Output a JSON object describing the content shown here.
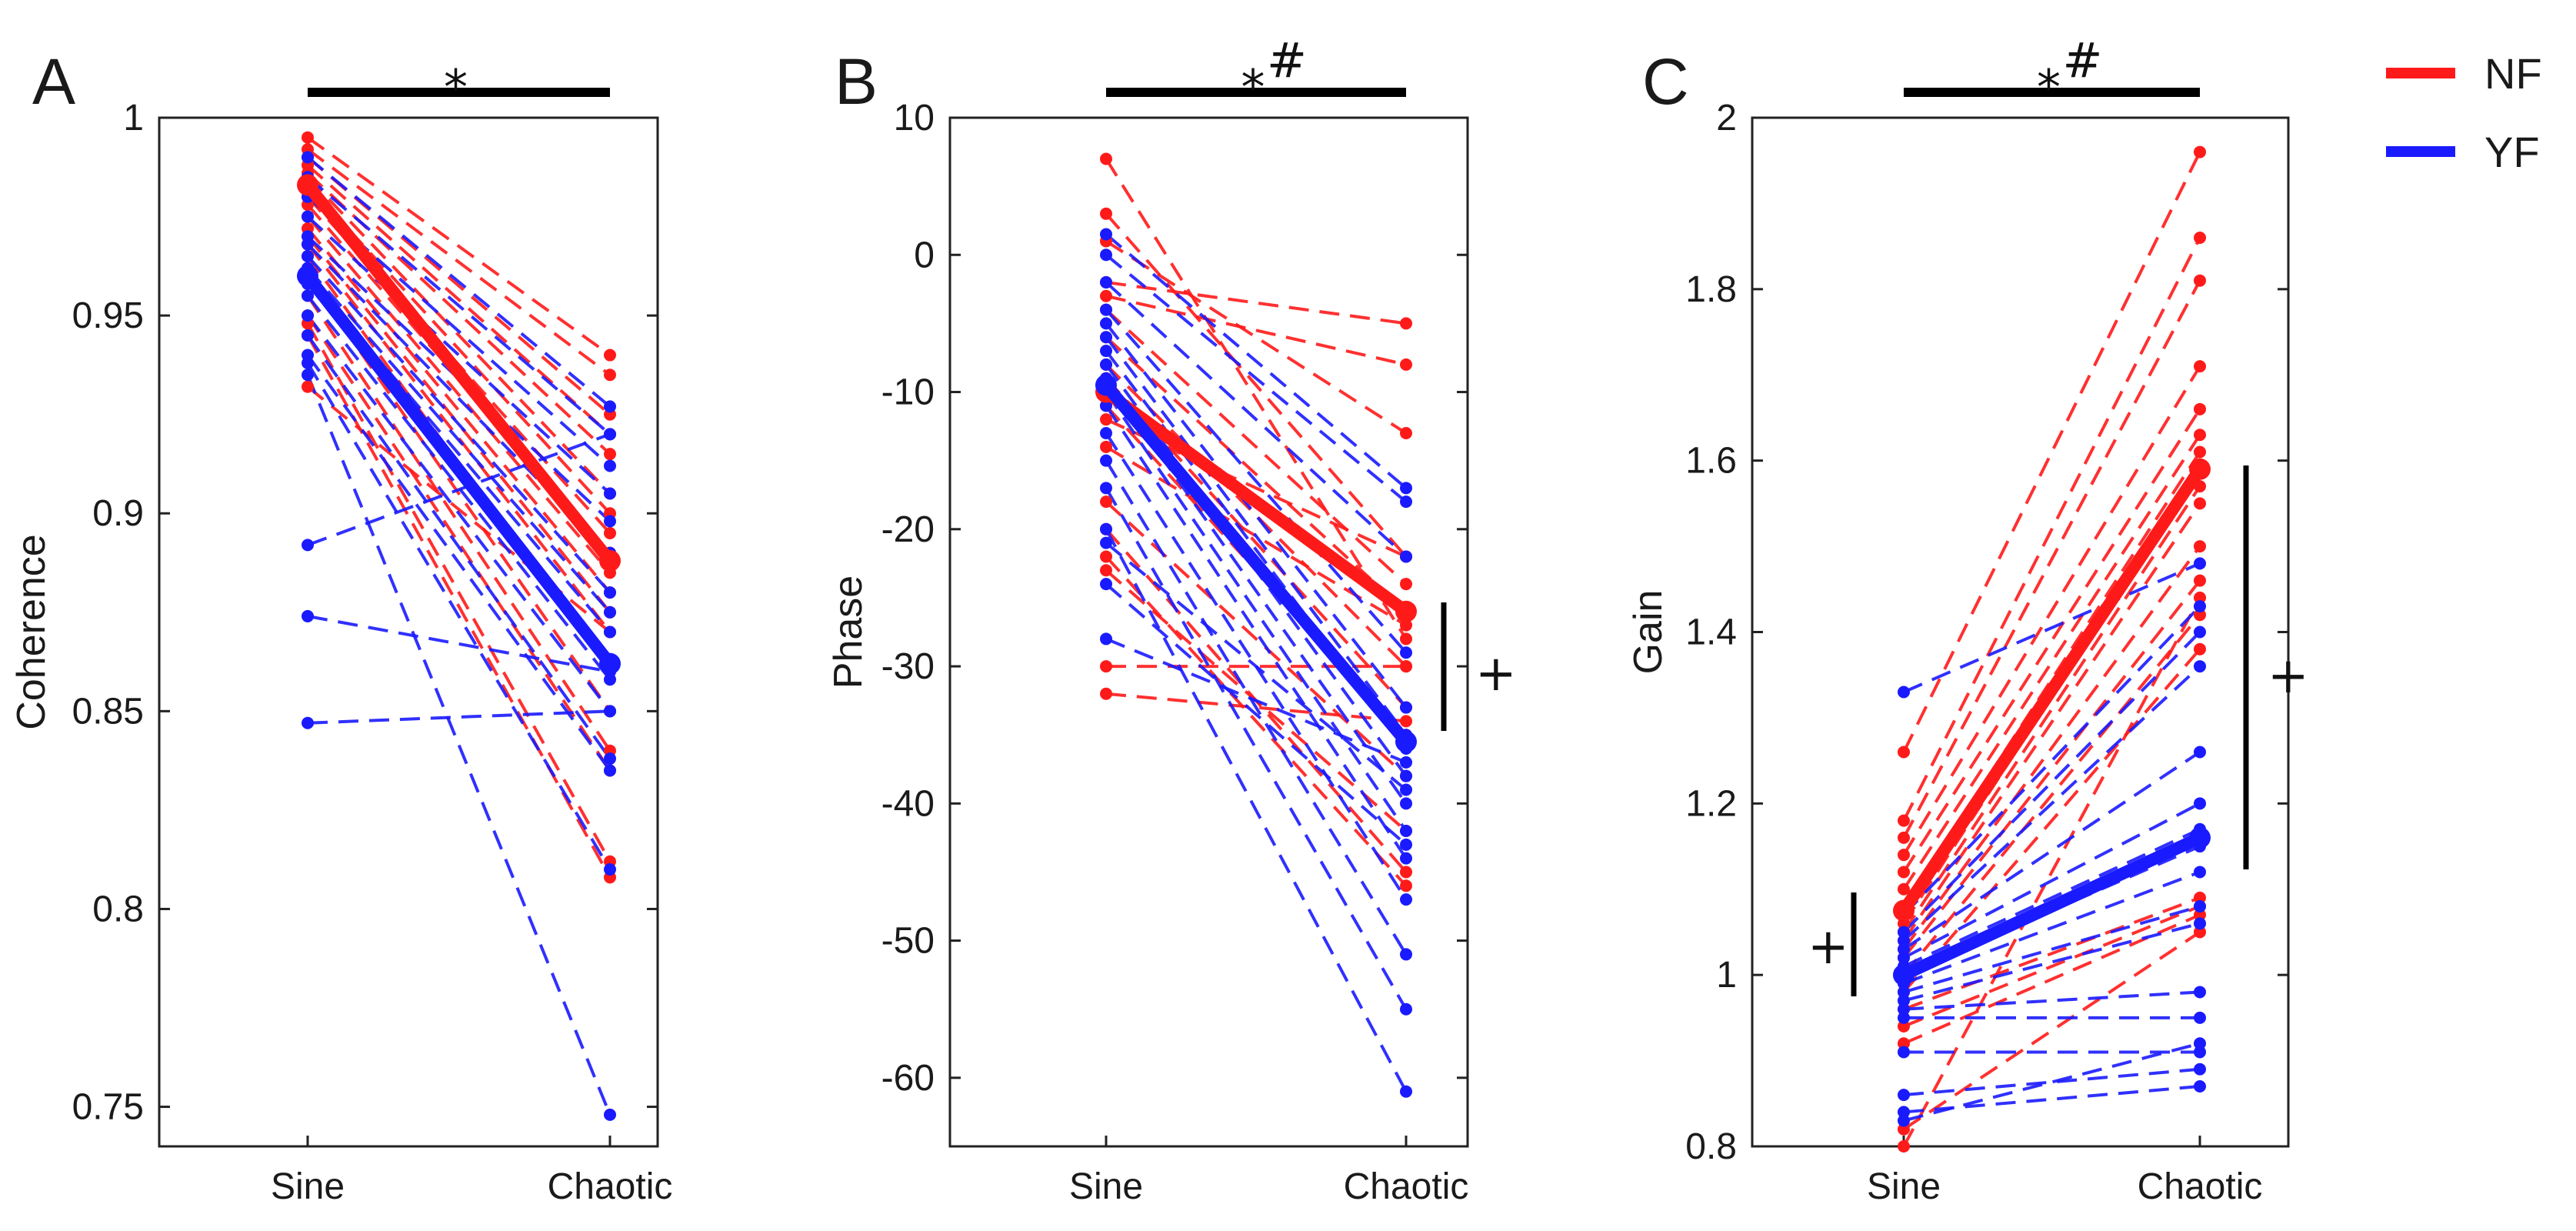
{
  "chart_data": [
    {
      "type": "line",
      "panel_label": "A",
      "ylabel": "Coherence",
      "categories": [
        "Sine",
        "Chaotic"
      ],
      "ylim": [
        0.74,
        1.0
      ],
      "yticks": [
        0.75,
        0.8,
        0.85,
        0.9,
        0.95,
        1
      ],
      "ytick_labels": [
        "0.75",
        "0.8",
        "0.85",
        "0.9",
        "0.95",
        "1"
      ],
      "significance": {
        "top": "*",
        "top_suffix": "",
        "side_right": "",
        "side_left": ""
      },
      "series": [
        {
          "name": "NF",
          "color": "#ff1a1a",
          "mean": [
            0.983,
            0.888
          ],
          "subjects": [
            [
              0.995,
              0.94
            ],
            [
              0.992,
              0.935
            ],
            [
              0.99,
              0.925
            ],
            [
              0.988,
              0.92
            ],
            [
              0.986,
              0.915
            ],
            [
              0.985,
              0.905
            ],
            [
              0.983,
              0.9
            ],
            [
              0.98,
              0.895
            ],
            [
              0.978,
              0.89
            ],
            [
              0.975,
              0.885
            ],
            [
              0.972,
              0.88
            ],
            [
              0.97,
              0.875
            ],
            [
              0.968,
              0.87
            ],
            [
              0.965,
              0.86
            ],
            [
              0.96,
              0.85
            ],
            [
              0.955,
              0.84
            ],
            [
              0.95,
              0.835
            ],
            [
              0.948,
              0.812
            ],
            [
              0.945,
              0.808
            ],
            [
              0.932,
              0.87
            ]
          ]
        },
        {
          "name": "YF",
          "color": "#1a1aff",
          "mean": [
            0.96,
            0.862
          ],
          "subjects": [
            [
              0.99,
              0.927
            ],
            [
              0.985,
              0.92
            ],
            [
              0.98,
              0.912
            ],
            [
              0.975,
              0.905
            ],
            [
              0.97,
              0.898
            ],
            [
              0.968,
              0.89
            ],
            [
              0.965,
              0.88
            ],
            [
              0.962,
              0.875
            ],
            [
              0.96,
              0.87
            ],
            [
              0.958,
              0.862
            ],
            [
              0.955,
              0.858
            ],
            [
              0.95,
              0.85
            ],
            [
              0.945,
              0.838
            ],
            [
              0.94,
              0.835
            ],
            [
              0.938,
              0.81
            ],
            [
              0.935,
              0.748
            ],
            [
              0.892,
              0.92
            ],
            [
              0.874,
              0.86
            ],
            [
              0.847,
              0.85
            ]
          ]
        }
      ]
    },
    {
      "type": "line",
      "panel_label": "B",
      "ylabel": "Phase",
      "categories": [
        "Sine",
        "Chaotic"
      ],
      "ylim": [
        -65,
        10
      ],
      "yticks": [
        -60,
        -50,
        -40,
        -30,
        -20,
        -10,
        0,
        10
      ],
      "ytick_labels": [
        "-60",
        "-50",
        "-40",
        "-30",
        "-20",
        "-10",
        "0",
        "10"
      ],
      "significance": {
        "top": "*",
        "top_suffix": "#",
        "side_right": "+",
        "side_left": ""
      },
      "series": [
        {
          "name": "NF",
          "color": "#ff1a1a",
          "mean": [
            -10,
            -26
          ],
          "subjects": [
            [
              7,
              -28
            ],
            [
              3,
              -22
            ],
            [
              1,
              -13
            ],
            [
              -2,
              -5
            ],
            [
              -3,
              -8
            ],
            [
              -4,
              -24
            ],
            [
              -6,
              -26
            ],
            [
              -8,
              -30
            ],
            [
              -9,
              -33
            ],
            [
              -11,
              -35
            ],
            [
              -12,
              -22
            ],
            [
              -14,
              -27
            ],
            [
              -18,
              -38
            ],
            [
              -20,
              -45
            ],
            [
              -22,
              -46
            ],
            [
              -23,
              -42
            ],
            [
              -30,
              -30
            ],
            [
              -32,
              -34
            ]
          ]
        },
        {
          "name": "YF",
          "color": "#1a1aff",
          "mean": [
            -9.5,
            -35.5
          ],
          "subjects": [
            [
              1.5,
              -17
            ],
            [
              0,
              -18
            ],
            [
              -2,
              -22
            ],
            [
              -4,
              -29
            ],
            [
              -5,
              -33
            ],
            [
              -6,
              -35
            ],
            [
              -7,
              -36
            ],
            [
              -8,
              -38
            ],
            [
              -9,
              -40
            ],
            [
              -10,
              -42
            ],
            [
              -11,
              -44
            ],
            [
              -13,
              -47
            ],
            [
              -15,
              -51
            ],
            [
              -17,
              -55
            ],
            [
              -20,
              -61
            ],
            [
              -21,
              -39
            ],
            [
              -24,
              -43
            ],
            [
              -28,
              -37
            ]
          ]
        }
      ]
    },
    {
      "type": "line",
      "panel_label": "C",
      "ylabel": "Gain",
      "categories": [
        "Sine",
        "Chaotic"
      ],
      "ylim": [
        0.8,
        2.0
      ],
      "yticks": [
        0.8,
        1,
        1.2,
        1.4,
        1.6,
        1.8,
        2
      ],
      "ytick_labels": [
        "0.8",
        "1",
        "1.2",
        "1.4",
        "1.6",
        "1.8",
        "2"
      ],
      "significance": {
        "top": "*",
        "top_suffix": "#",
        "side_right": "+",
        "side_left": "+"
      },
      "series": [
        {
          "name": "NF",
          "color": "#ff1a1a",
          "mean": [
            1.075,
            1.59
          ],
          "subjects": [
            [
              1.26,
              1.96
            ],
            [
              1.18,
              1.86
            ],
            [
              1.16,
              1.81
            ],
            [
              1.14,
              1.71
            ],
            [
              1.12,
              1.66
            ],
            [
              1.1,
              1.63
            ],
            [
              1.08,
              1.61
            ],
            [
              1.06,
              1.59
            ],
            [
              1.05,
              1.57
            ],
            [
              1.04,
              1.55
            ],
            [
              1.03,
              1.5
            ],
            [
              1.02,
              1.46
            ],
            [
              1.0,
              1.42
            ],
            [
              0.98,
              1.38
            ],
            [
              0.96,
              1.09
            ],
            [
              0.94,
              1.08
            ],
            [
              0.92,
              1.07
            ],
            [
              0.82,
              1.05
            ],
            [
              0.8,
              1.44
            ]
          ]
        },
        {
          "name": "YF",
          "color": "#1a1aff",
          "mean": [
            1.0,
            1.16
          ],
          "subjects": [
            [
              1.33,
              1.48
            ],
            [
              1.07,
              1.43
            ],
            [
              1.05,
              1.4
            ],
            [
              1.04,
              1.36
            ],
            [
              1.03,
              1.26
            ],
            [
              1.02,
              1.2
            ],
            [
              1.01,
              1.17
            ],
            [
              1.0,
              1.15
            ],
            [
              0.99,
              1.12
            ],
            [
              0.98,
              1.08
            ],
            [
              0.97,
              1.06
            ],
            [
              0.96,
              0.98
            ],
            [
              0.95,
              0.95
            ],
            [
              0.91,
              0.91
            ],
            [
              0.86,
              0.89
            ],
            [
              0.84,
              0.87
            ],
            [
              0.83,
              0.92
            ]
          ]
        }
      ]
    }
  ],
  "legend": [
    {
      "label": "NF",
      "color": "#ff1a1a"
    },
    {
      "label": "YF",
      "color": "#1a1aff"
    }
  ]
}
